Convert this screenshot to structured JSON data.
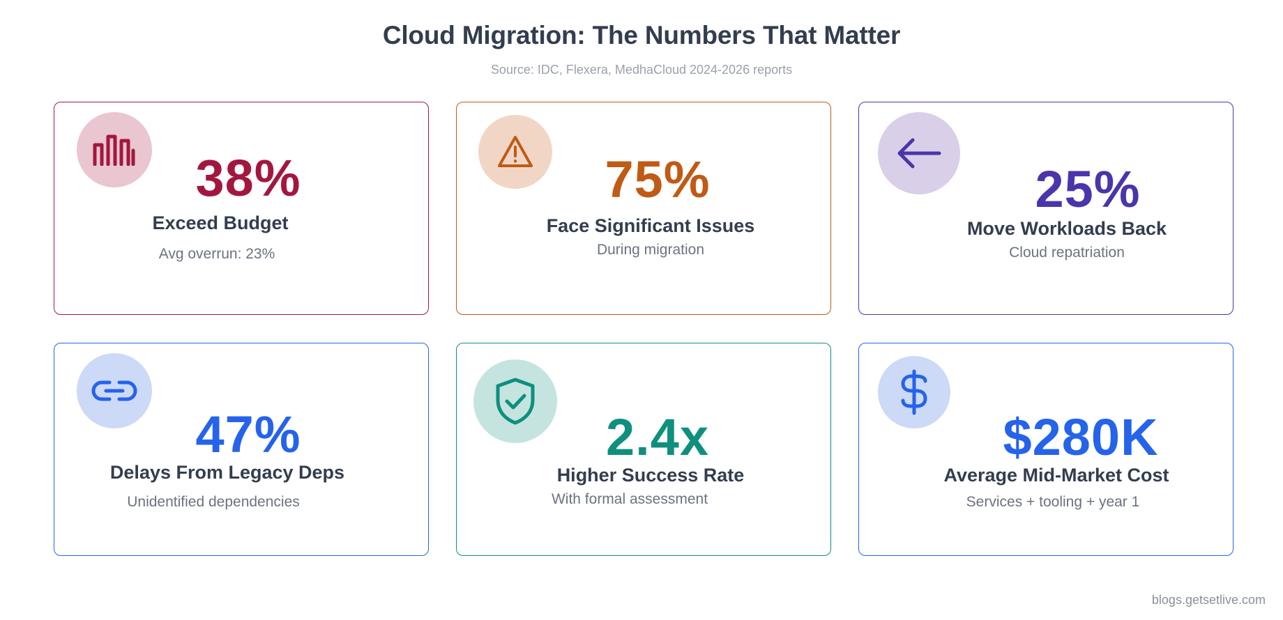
{
  "header": {
    "title": "Cloud Migration: The Numbers That Matter",
    "source": "Source: IDC, Flexera, MedhaCloud 2024-2026 reports"
  },
  "cards": [
    {
      "value": "38%",
      "label": "Exceed Budget",
      "sub": "Avg overrun: 23%",
      "icon": "bar-chart-icon",
      "color": "#a3173f",
      "bg": "#e9c6d0"
    },
    {
      "value": "75%",
      "label": "Face Significant Issues",
      "sub": "During migration",
      "icon": "warning-icon",
      "color": "#c05a15",
      "bg": "#f1d6c6"
    },
    {
      "value": "25%",
      "label": "Move Workloads Back",
      "sub": "Cloud repatriation",
      "icon": "arrow-left-icon",
      "color": "#4c34ac",
      "bg": "#d9cfe9"
    },
    {
      "value": "47%",
      "label": "Delays From Legacy Deps",
      "sub": "Unidentified dependencies",
      "icon": "link-icon",
      "color": "#2563eb",
      "bg": "#ccd9f7"
    },
    {
      "value": "2.4x",
      "label": "Higher Success Rate",
      "sub": "With formal assessment",
      "icon": "shield-check-icon",
      "color": "#0f8f7e",
      "bg": "#c5e4df"
    },
    {
      "value": "$280K",
      "label": "Average Mid-Market Cost",
      "sub": "Services + tooling + year 1",
      "icon": "dollar-icon",
      "color": "#2563eb",
      "bg": "#ccd9f7"
    }
  ],
  "footer": {
    "text": "blogs.getsetlive.com"
  }
}
